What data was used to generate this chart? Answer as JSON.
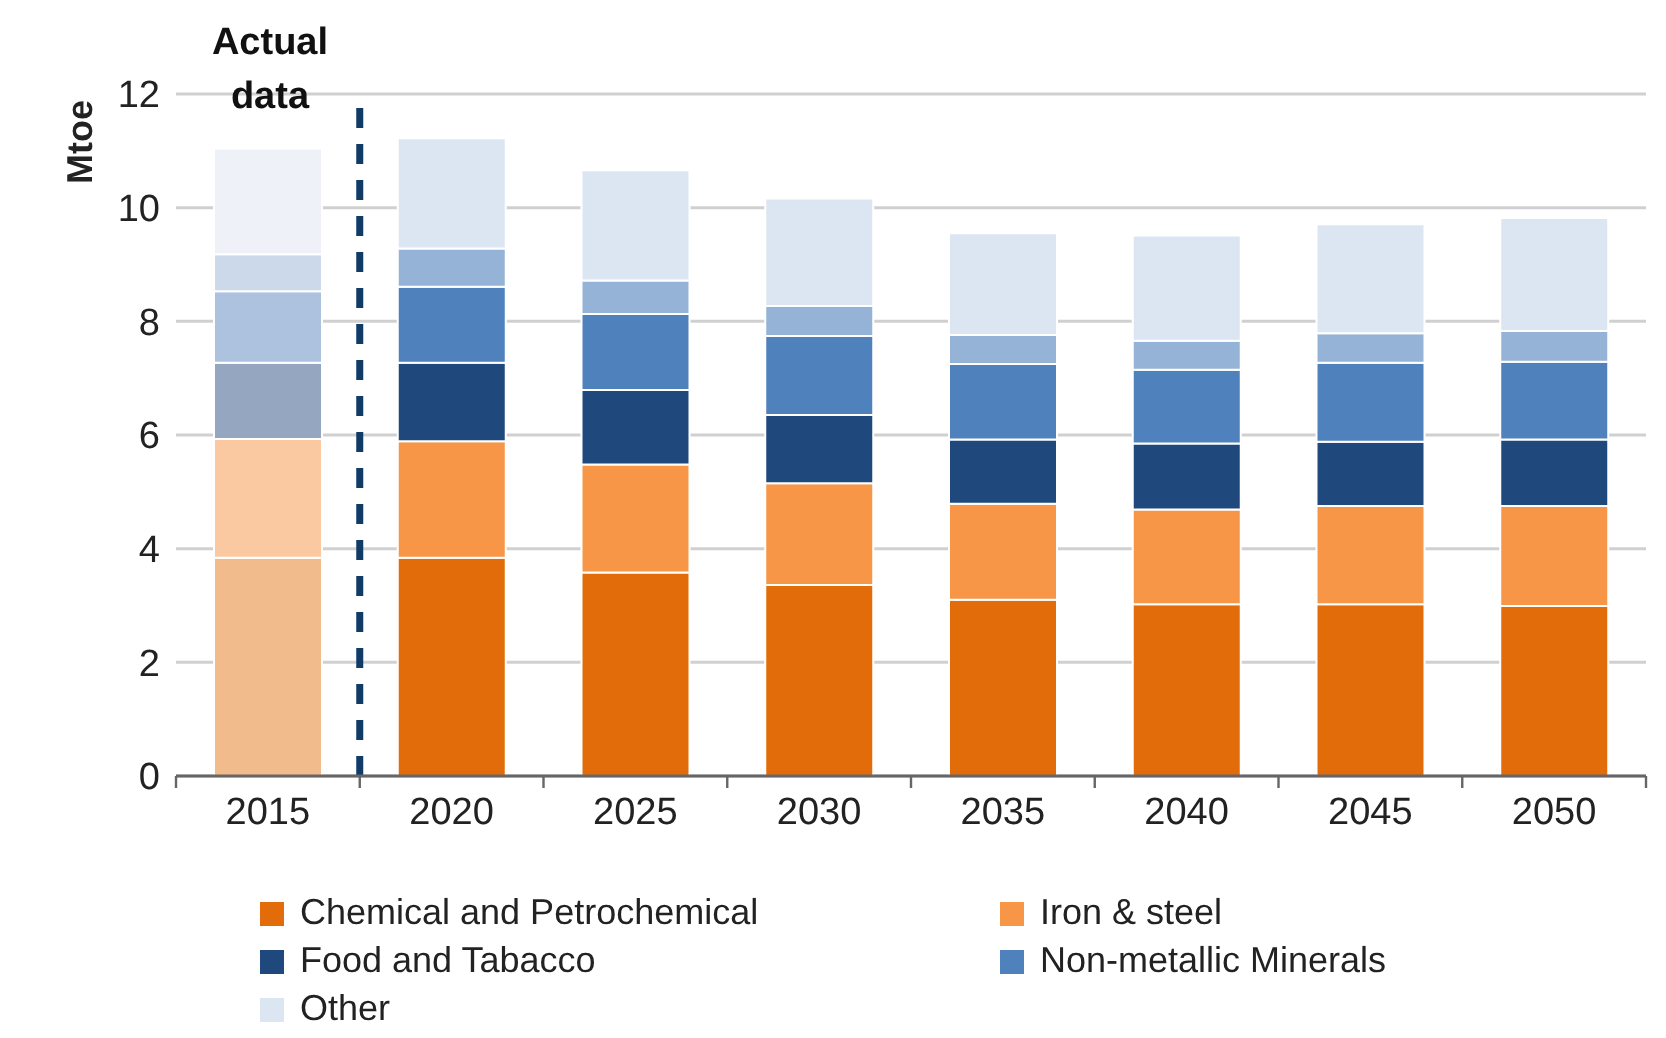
{
  "chart_data": {
    "type": "bar",
    "stacked": true,
    "ylabel": "Mtoe",
    "annotations": [
      "Actual data"
    ],
    "x": [
      2015,
      2020,
      2025,
      2030,
      2035,
      2040,
      2045,
      2050
    ],
    "xlim": [
      2012.5,
      2052.5
    ],
    "xticks": [
      {
        "value": 2012.5,
        "label": null
      },
      2015,
      {
        "value": 2017.5,
        "label": null
      },
      2020,
      {
        "value": 2022.5,
        "label": null
      },
      2025,
      {
        "value": 2027.5,
        "label": null
      },
      2030,
      {
        "value": 2032.5,
        "label": null
      },
      2035,
      {
        "value": 2037.5,
        "label": null
      },
      2040,
      {
        "value": 2042.5,
        "label": null
      },
      2045,
      {
        "value": 2047.5,
        "label": null
      },
      2050,
      {
        "value": 2052.5,
        "label": null
      }
    ],
    "ylim": [
      0,
      12
    ],
    "yticks": [
      0,
      2,
      4,
      6,
      8,
      10,
      12
    ],
    "grid": "y",
    "legend": "bottom",
    "ref_lines": [
      {
        "axis": "x",
        "value": 2017.5,
        "color": "#0f3b66",
        "line_style": "dashed"
      }
    ],
    "series": [
      {
        "name": "Chemical and Petrochemical",
        "color": "#e36c0a",
        "colors": [
          "#f2bb8c",
          "#e36c0a",
          "#e36c0a",
          "#e36c0a",
          "#e36c0a",
          "#e36c0a",
          "#e36c0a",
          "#e36c0a"
        ],
        "values": [
          3.84,
          3.84,
          3.58,
          3.36,
          3.1,
          3.02,
          3.02,
          2.99
        ]
      },
      {
        "name": "Iron & steel",
        "color": "#f79646",
        "colors": [
          "#fac9a2",
          "#f79646",
          "#f79646",
          "#f79646",
          "#f79646",
          "#f79646",
          "#f79646",
          "#f79646"
        ],
        "values": [
          2.09,
          2.05,
          1.9,
          1.79,
          1.69,
          1.67,
          1.73,
          1.76
        ]
      },
      {
        "name": "Food and Tabacco",
        "color": "#1f497d",
        "colors": [
          "#95a7c0",
          "#1f497d",
          "#1f497d",
          "#1f497d",
          "#1f497d",
          "#1f497d",
          "#1f497d",
          "#1f497d"
        ],
        "values": [
          1.34,
          1.38,
          1.31,
          1.2,
          1.13,
          1.16,
          1.13,
          1.17
        ]
      },
      {
        "name": "Non-metallic Minerals",
        "color": "#4f81bd",
        "colors": [
          "#adc2df",
          "#4f81bd",
          "#4f81bd",
          "#4f81bd",
          "#4f81bd",
          "#4f81bd",
          "#4f81bd",
          "#4f81bd"
        ],
        "values": [
          1.26,
          1.34,
          1.34,
          1.39,
          1.33,
          1.3,
          1.39,
          1.37
        ]
      },
      {
        "color": "#95b3d7",
        "colors": [
          "#cbd9ea",
          "#95b3d7",
          "#95b3d7",
          "#95b3d7",
          "#95b3d7",
          "#95b3d7",
          "#95b3d7",
          "#95b3d7"
        ],
        "values": [
          0.65,
          0.67,
          0.59,
          0.53,
          0.51,
          0.51,
          0.52,
          0.54
        ]
      },
      {
        "name": "Other",
        "color": "#dce6f2",
        "colors": [
          "#eef2f8",
          "#dce6f2",
          "#dce6f2",
          "#dce6f2",
          "#dce6f2",
          "#dce6f2",
          "#dce6f2",
          "#dce6f2"
        ],
        "values": [
          1.86,
          1.94,
          1.94,
          1.89,
          1.79,
          1.85,
          1.92,
          1.99
        ]
      }
    ]
  }
}
